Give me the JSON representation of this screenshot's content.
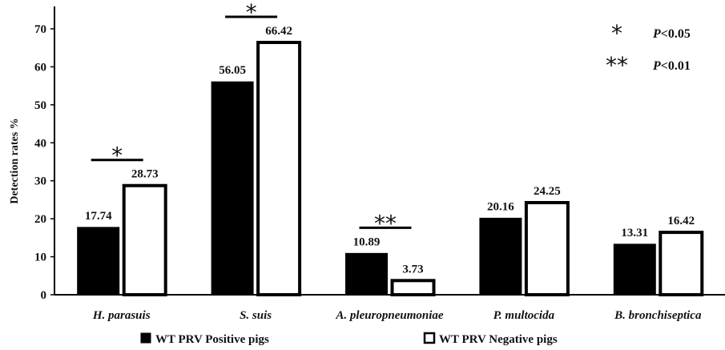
{
  "chart_data": {
    "type": "bar",
    "ylabel": "Detection rates %",
    "ylim": [
      0,
      70
    ],
    "yticks": [
      "0",
      "10",
      "20",
      "30",
      "40",
      "50",
      "60",
      "70"
    ],
    "categories": [
      "H. parasuis",
      "S. suis",
      "A. pleuropneumoniae",
      "P. multocida",
      "B. bronchiseptica"
    ],
    "series": [
      {
        "name": "WT PRV Positive pigs",
        "fill": "#000000",
        "values": [
          17.74,
          56.05,
          10.89,
          20.16,
          13.31
        ],
        "labels": [
          "17.74",
          "56.05",
          "10.89",
          "20.16",
          "13.31"
        ]
      },
      {
        "name": "WT PRV Negative pigs",
        "fill": "#ffffff",
        "values": [
          28.73,
          66.42,
          3.73,
          24.25,
          16.42
        ],
        "labels": [
          "28.73",
          "66.42",
          "3.73",
          "24.25",
          "16.42"
        ]
      }
    ],
    "significance": [
      {
        "category": "H. parasuis",
        "marker": "*"
      },
      {
        "category": "S. suis",
        "marker": "*"
      },
      {
        "category": "A. pleuropneumoniae",
        "marker": "**"
      }
    ],
    "legend_notes": [
      {
        "marker": "*",
        "text": "P<0.05"
      },
      {
        "marker": "**",
        "text": "P<0.01"
      }
    ],
    "legend_position": "bottom",
    "grid": false
  }
}
